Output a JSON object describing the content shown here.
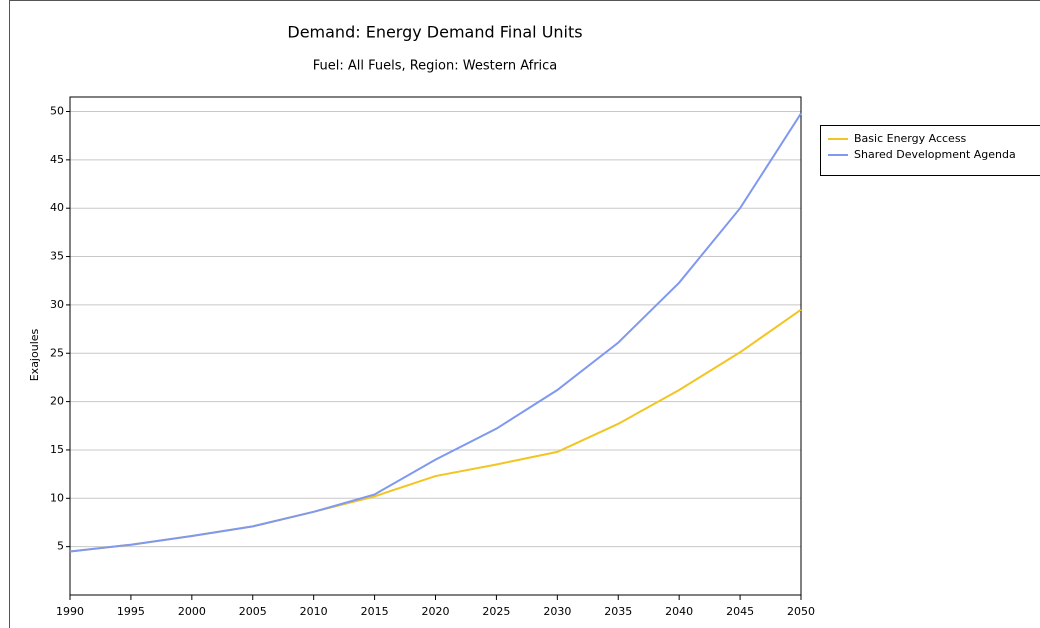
{
  "chart_data": {
    "type": "line",
    "title": "Demand: Energy Demand Final Units",
    "subtitle": "Fuel: All Fuels, Region: Western Africa",
    "y_label": "Exajoules",
    "x": [
      1990,
      1995,
      2000,
      2005,
      2010,
      2015,
      2020,
      2025,
      2030,
      2035,
      2040,
      2045,
      2050
    ],
    "series": [
      {
        "name": "Basic Energy Access",
        "color": "#f2c523",
        "values": [
          4.5,
          5.2,
          6.1,
          7.1,
          8.6,
          10.2,
          12.3,
          13.5,
          14.8,
          17.7,
          21.2,
          25.1,
          29.5
        ]
      },
      {
        "name": "Shared Development Agenda",
        "color": "#7f98f0",
        "values": [
          4.5,
          5.2,
          6.1,
          7.1,
          8.6,
          10.4,
          14.0,
          17.2,
          21.2,
          26.1,
          32.3,
          40.0,
          49.8
        ]
      }
    ],
    "xlim": [
      1990,
      2050
    ],
    "xticks": [
      1990,
      1995,
      2000,
      2005,
      2010,
      2015,
      2020,
      2025,
      2030,
      2035,
      2040,
      2045,
      2050
    ],
    "ylim": [
      0,
      51.5
    ],
    "yticks": [
      5,
      10,
      15,
      20,
      25,
      30,
      35,
      40,
      45,
      50
    ],
    "grid": true,
    "legend": "right"
  }
}
